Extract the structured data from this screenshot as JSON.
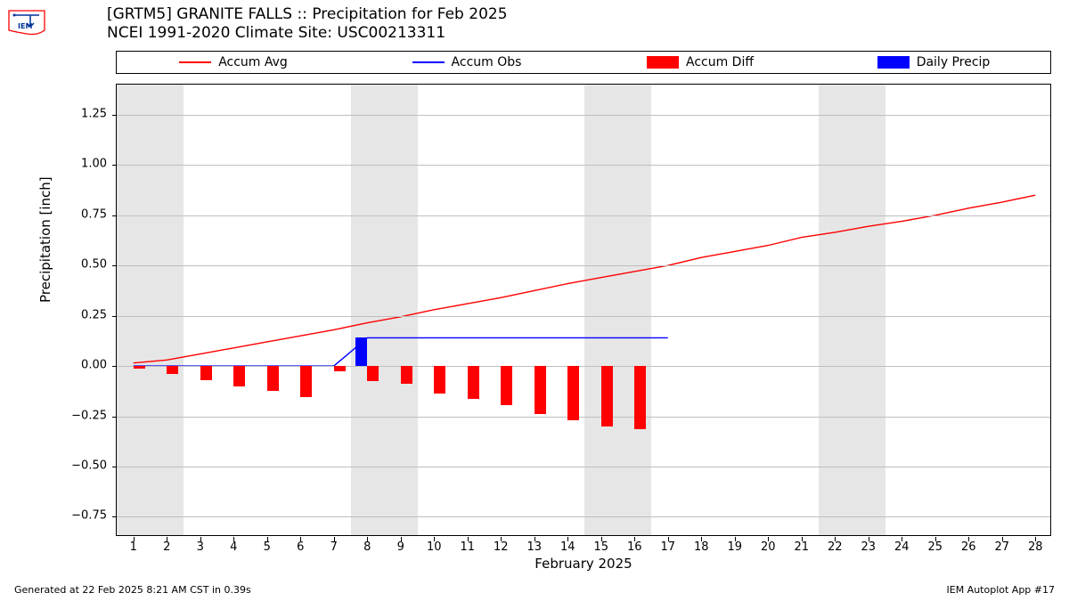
{
  "title": {
    "line1": "[GRTM5] GRANITE FALLS :: Precipitation for Feb 2025",
    "line2": "NCEI 1991-2020 Climate Site: USC00213311"
  },
  "legend": {
    "items": [
      {
        "label": "Accum Avg",
        "type": "line",
        "color": "#ff0000"
      },
      {
        "label": "Accum Obs",
        "type": "line",
        "color": "#0000ff"
      },
      {
        "label": "Accum Diff",
        "type": "block",
        "color": "#ff0000"
      },
      {
        "label": "Daily Precip",
        "type": "block",
        "color": "#0000ff"
      }
    ]
  },
  "chart": {
    "background_color": "#ffffff",
    "band_color": "#e6e6e6",
    "grid_color": "#bfbfbf",
    "xlim": [
      0.5,
      28.5
    ],
    "ylim": [
      -0.85,
      1.4
    ],
    "yticks": [
      -0.75,
      -0.5,
      -0.25,
      0.0,
      0.25,
      0.5,
      0.75,
      1.0,
      1.25
    ],
    "ytick_labels": [
      "−0.75",
      "−0.50",
      "−0.25",
      "0.00",
      "0.25",
      "0.50",
      "0.75",
      "1.00",
      "1.25"
    ],
    "xticks": [
      1,
      2,
      3,
      4,
      5,
      6,
      7,
      8,
      9,
      10,
      11,
      12,
      13,
      14,
      15,
      16,
      17,
      18,
      19,
      20,
      21,
      22,
      23,
      24,
      25,
      26,
      27,
      28
    ],
    "xlabel": "February 2025",
    "ylabel": "Precipitation [inch]",
    "weekend_bands": [
      [
        0.5,
        2.5
      ],
      [
        7.5,
        9.5
      ],
      [
        14.5,
        16.5
      ],
      [
        21.5,
        23.5
      ]
    ],
    "accum_avg": {
      "color": "#ff0000",
      "width": 1.4,
      "points": [
        [
          1,
          0.015
        ],
        [
          2,
          0.03
        ],
        [
          3,
          0.06
        ],
        [
          4,
          0.09
        ],
        [
          5,
          0.12
        ],
        [
          6,
          0.15
        ],
        [
          7,
          0.18
        ],
        [
          8,
          0.215
        ],
        [
          9,
          0.245
        ],
        [
          10,
          0.28
        ],
        [
          11,
          0.31
        ],
        [
          12,
          0.34
        ],
        [
          13,
          0.375
        ],
        [
          14,
          0.41
        ],
        [
          15,
          0.44
        ],
        [
          16,
          0.47
        ],
        [
          17,
          0.5
        ],
        [
          18,
          0.54
        ],
        [
          19,
          0.57
        ],
        [
          20,
          0.6
        ],
        [
          21,
          0.64
        ],
        [
          22,
          0.665
        ],
        [
          23,
          0.695
        ],
        [
          24,
          0.72
        ],
        [
          25,
          0.75
        ],
        [
          26,
          0.785
        ],
        [
          27,
          0.815
        ],
        [
          28,
          0.85
        ]
      ]
    },
    "accum_obs": {
      "color": "#0000ff",
      "width": 1.4,
      "points": [
        [
          1,
          0.0
        ],
        [
          2,
          0.0
        ],
        [
          3,
          0.0
        ],
        [
          4,
          0.0
        ],
        [
          5,
          0.0
        ],
        [
          6,
          0.0
        ],
        [
          7,
          0.0
        ],
        [
          8,
          0.14
        ],
        [
          9,
          0.14
        ],
        [
          10,
          0.14
        ],
        [
          11,
          0.14
        ],
        [
          12,
          0.14
        ],
        [
          13,
          0.14
        ],
        [
          14,
          0.14
        ],
        [
          15,
          0.14
        ],
        [
          16,
          0.14
        ],
        [
          17,
          0.14
        ]
      ]
    },
    "accum_diff_bars": {
      "color": "#ff0000",
      "bar_width": 0.35,
      "values": [
        {
          "x": 1,
          "y": -0.015
        },
        {
          "x": 2,
          "y": -0.04
        },
        {
          "x": 3,
          "y": -0.07
        },
        {
          "x": 4,
          "y": -0.1
        },
        {
          "x": 5,
          "y": -0.125
        },
        {
          "x": 6,
          "y": -0.155
        },
        {
          "x": 7,
          "y": -0.025
        },
        {
          "x": 8,
          "y": -0.075
        },
        {
          "x": 9,
          "y": -0.09
        },
        {
          "x": 10,
          "y": -0.135
        },
        {
          "x": 11,
          "y": -0.165
        },
        {
          "x": 12,
          "y": -0.195
        },
        {
          "x": 13,
          "y": -0.24
        },
        {
          "x": 14,
          "y": -0.27
        },
        {
          "x": 15,
          "y": -0.3
        },
        {
          "x": 16,
          "y": -0.315
        }
      ]
    },
    "daily_precip_bars": {
      "color": "#0000ff",
      "bar_width": 0.35,
      "values": [
        {
          "x": 8,
          "y": 0.14
        }
      ]
    }
  },
  "footer": {
    "left": "Generated at 22 Feb 2025 8:21 AM CST in 0.39s",
    "right": "IEM Autoplot App #17"
  },
  "logo_colors": {
    "outline": "#ff0000",
    "inner": "#003399"
  }
}
